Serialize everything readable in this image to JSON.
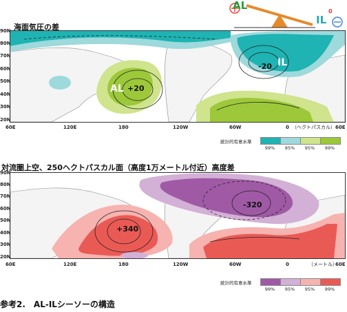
{
  "seesaw": {
    "plus_symbol": "⊕",
    "minus_symbol": "⊖",
    "al_label": "AL",
    "il_label": "IL",
    "superscript": "0"
  },
  "map1": {
    "title": "海面気圧の差",
    "unit": "（ヘクトパスカル）",
    "lat_labels": [
      "90N",
      "80N",
      "70N",
      "60N",
      "50N",
      "40N",
      "30N",
      "20N"
    ],
    "lon_labels": [
      "60E",
      "120E",
      "180",
      "120W",
      "60W",
      "0",
      "60E"
    ],
    "annotations": {
      "al": "AL",
      "al_value": "+20",
      "il": "IL",
      "il_value": "-20"
    },
    "legend": {
      "title": "統計的有意水準",
      "labels": [
        "99%",
        "95%",
        "95%",
        "99%"
      ],
      "colors": [
        "#1fb3b3",
        "#9ed9dc",
        "#cfe48c",
        "#9cc83a"
      ]
    }
  },
  "map2": {
    "title": "対流圏上空、250ヘクトパスカル面（高度1万メートル付近）高度差",
    "unit": "（メートル）",
    "lat_labels": [
      "90N",
      "80N",
      "70N",
      "60N",
      "50N",
      "40N",
      "30N",
      "20N"
    ],
    "lon_labels": [
      "60E",
      "120E",
      "180",
      "120W",
      "60W",
      "0",
      "60E"
    ],
    "annotations": {
      "pos_value": "+340",
      "neg_value": "-320"
    },
    "legend": {
      "title": "統計的有意水準",
      "labels": [
        "99%",
        "95%",
        "95%",
        "99%"
      ],
      "colors": [
        "#a05aa5",
        "#d3b0d6",
        "#f6b3b0",
        "#ea5a55"
      ]
    }
  },
  "caption": "参考2.　AL-ILシーソーの構造"
}
